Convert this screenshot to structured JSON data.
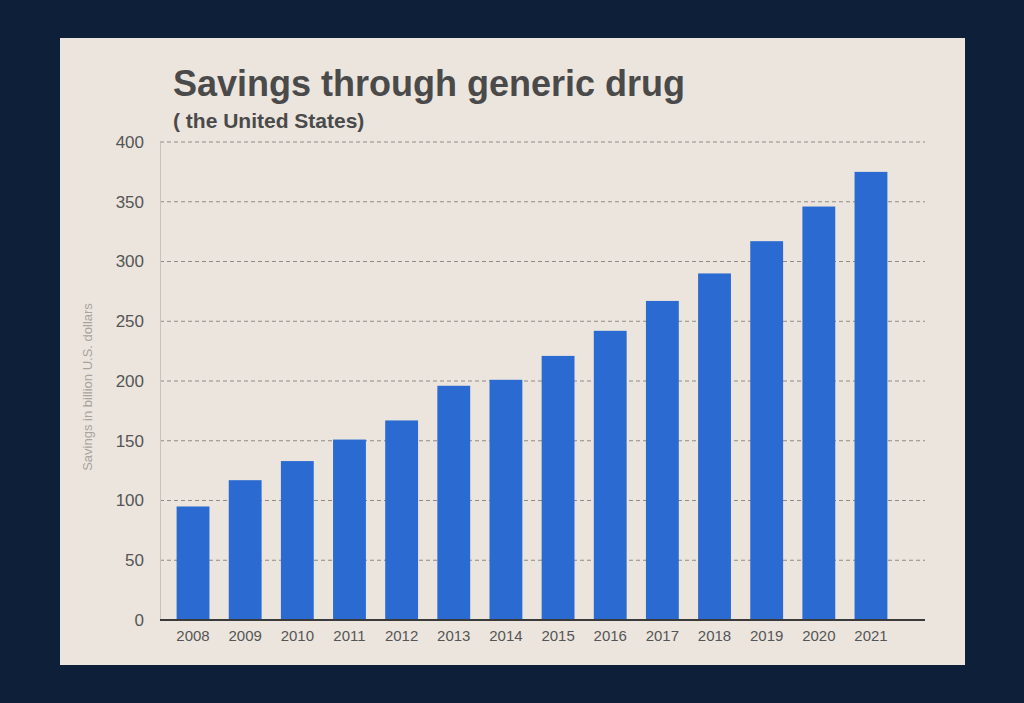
{
  "chart_data": {
    "type": "bar",
    "title": "Savings through generic drug",
    "subtitle": "( the United States)",
    "y_label": "Savings in billion U.S. dollars",
    "categories": [
      "2008",
      "2009",
      "2010",
      "2011",
      "2012",
      "2013",
      "2014",
      "2015",
      "2016",
      "2017",
      "2018",
      "2019",
      "2020",
      "2021"
    ],
    "values": [
      95,
      117,
      133,
      151,
      167,
      196,
      201,
      221,
      242,
      267,
      290,
      317,
      346,
      375
    ],
    "color": "#2b6bd1",
    "ylim": [
      0,
      400
    ],
    "yticks": [
      0,
      50,
      100,
      150,
      200,
      250,
      300,
      350,
      400
    ],
    "grid": true
  }
}
